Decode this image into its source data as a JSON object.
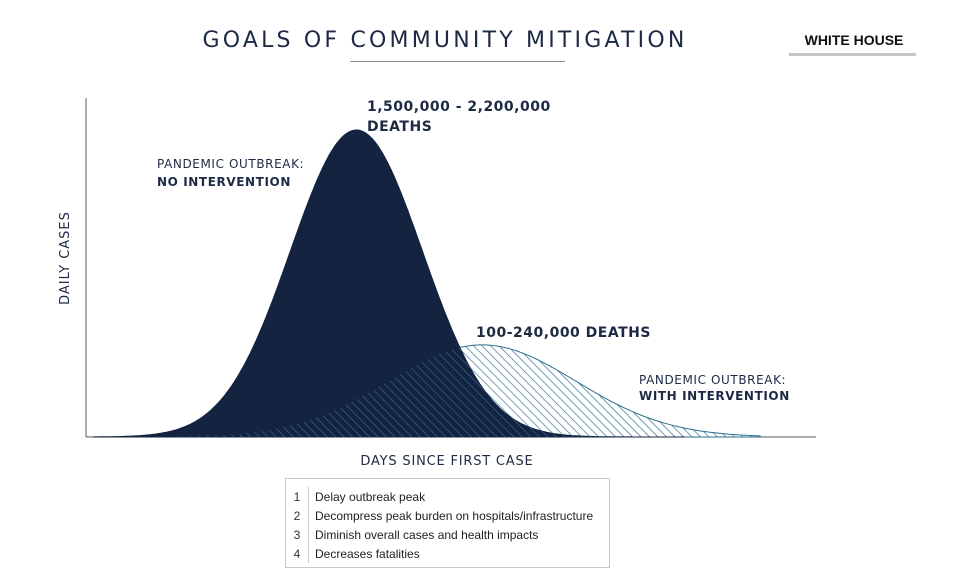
{
  "header": {
    "title": "GOALS OF COMMUNITY MITIGATION",
    "badge": "WHITE HOUSE"
  },
  "chart_data": {
    "type": "area",
    "title": "GOALS OF COMMUNITY MITIGATION",
    "xlabel": "DAYS SINCE FIRST CASE",
    "ylabel": "DAILY CASES",
    "grid": false,
    "xlim": [
      0,
      100
    ],
    "ylim": [
      0,
      100
    ],
    "series": [
      {
        "name": "PANDEMIC OUTBREAK: NO INTERVENTION",
        "label_line1": "PANDEMIC OUTBREAK:",
        "label_line2": "NO INTERVENTION",
        "peak_label_line1": "1,500,000 - 2,200,000",
        "peak_label_line2": "DEATHS",
        "fill": "#14233f",
        "style": "solid",
        "peak_x": 36.1,
        "peak_y": 100,
        "spread": 8.8
      },
      {
        "name": "PANDEMIC OUTBREAK: WITH INTERVENTION",
        "label_line1": "PANDEMIC OUTBREAK:",
        "label_line2": "WITH INTERVENTION",
        "peak_label_line1": "100-240,000 DEATHS",
        "fill": "#2d6d8f",
        "style": "hatched",
        "peak_x": 52.9,
        "peak_y": 30,
        "spread": 12.5
      }
    ],
    "goals": [
      {
        "num": "1",
        "text": "Delay outbreak peak"
      },
      {
        "num": "2",
        "text": "Decompress peak burden on hospitals/infrastructure"
      },
      {
        "num": "3",
        "text": "Diminish overall cases and health impacts"
      },
      {
        "num": "4",
        "text": "Decreases fatalities"
      }
    ]
  }
}
